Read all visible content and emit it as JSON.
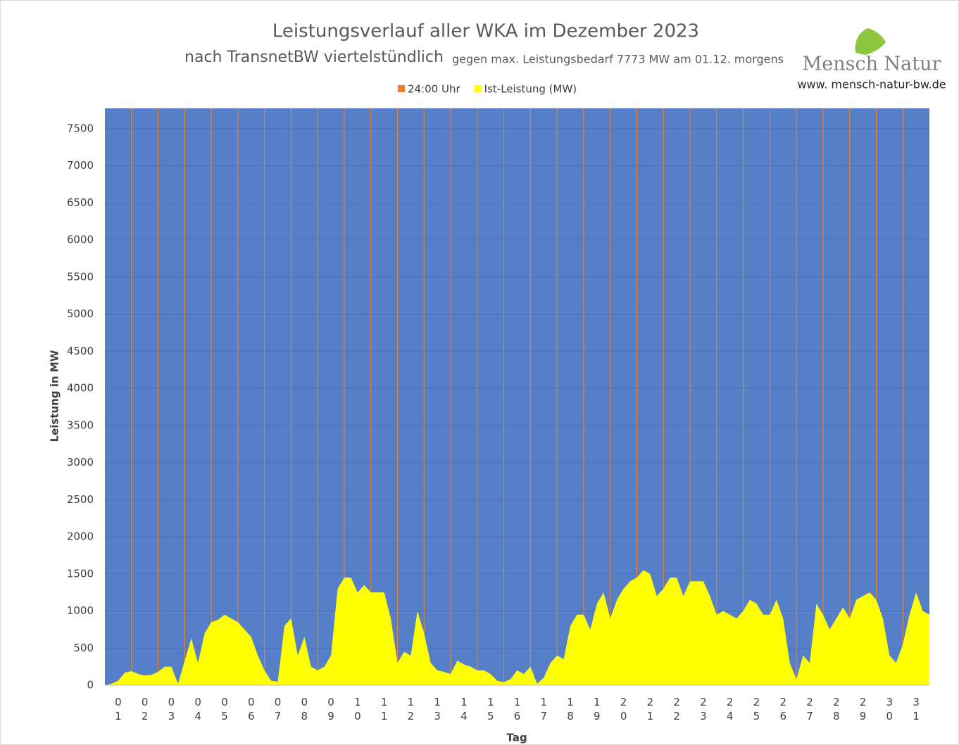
{
  "chart_data": {
    "type": "area",
    "title": "Leistungsverlauf aller WKA im Dezember 2023",
    "subtitle": "nach TransnetBW viertelstündlich",
    "subtitle_note": "gegen max. Leistungsbedarf 7773 MW am 01.12.  morgens",
    "logo": "Mensch Natur",
    "website": "www. mensch-natur-bw.de",
    "y_label": "Leistung in MW",
    "x_label": "Tag",
    "background": "#5580c8",
    "grid": true,
    "ylim": [
      0,
      7773
    ],
    "yticks": [
      0,
      500,
      1000,
      1500,
      2000,
      2500,
      3000,
      3500,
      4000,
      4500,
      5000,
      5500,
      6000,
      6500,
      7000,
      7500
    ],
    "xlim": [
      0,
      31
    ],
    "categories": [
      "01",
      "02",
      "03",
      "04",
      "05",
      "06",
      "07",
      "08",
      "09",
      "10",
      "11",
      "12",
      "13",
      "14",
      "15",
      "16",
      "17",
      "18",
      "19",
      "20",
      "21",
      "22",
      "23",
      "24",
      "25",
      "26",
      "27",
      "28",
      "29",
      "30",
      "31"
    ],
    "series": [
      {
        "name": "24:00 Uhr",
        "color": "#ed7d31",
        "kind": "vline",
        "x": [
          1,
          2,
          3,
          4,
          5,
          6,
          7,
          8,
          9,
          10,
          11,
          12,
          13,
          14,
          15,
          16,
          17,
          18,
          19,
          20,
          21,
          22,
          23,
          24,
          25,
          26,
          27,
          28,
          29,
          30
        ],
        "values": [
          7773,
          7773,
          7773,
          7773,
          7773,
          7773,
          7773,
          7773,
          7773,
          7773,
          7773,
          7773,
          7773,
          7773,
          7773,
          7773,
          7773,
          7773,
          7773,
          7773,
          7773,
          7773,
          7773,
          7773,
          7773,
          7773,
          7773,
          7773,
          7773,
          7773
        ]
      },
      {
        "name": "Ist-Leistung (MW)",
        "color": "#ffff00",
        "kind": "area",
        "x": [
          0,
          0.25,
          0.5,
          0.75,
          1,
          1.25,
          1.5,
          1.75,
          2,
          2.25,
          2.5,
          2.75,
          3,
          3.25,
          3.5,
          3.75,
          4,
          4.25,
          4.5,
          4.75,
          5,
          5.25,
          5.5,
          5.75,
          6,
          6.25,
          6.5,
          6.75,
          7,
          7.25,
          7.5,
          7.75,
          8,
          8.25,
          8.5,
          8.75,
          9,
          9.25,
          9.5,
          9.75,
          10,
          10.25,
          10.5,
          10.75,
          11,
          11.25,
          11.5,
          11.75,
          12,
          12.25,
          12.5,
          12.75,
          13,
          13.25,
          13.5,
          13.75,
          14,
          14.25,
          14.5,
          14.75,
          15,
          15.25,
          15.5,
          15.75,
          16,
          16.25,
          16.5,
          16.75,
          17,
          17.25,
          17.5,
          17.75,
          18,
          18.25,
          18.5,
          18.75,
          19,
          19.25,
          19.5,
          19.75,
          20,
          20.25,
          20.5,
          20.75,
          21,
          21.25,
          21.5,
          21.75,
          22,
          22.25,
          22.5,
          22.75,
          23,
          23.25,
          23.5,
          23.75,
          24,
          24.25,
          24.5,
          24.75,
          25,
          25.25,
          25.5,
          25.75,
          26,
          26.25,
          26.5,
          26.75,
          27,
          27.25,
          27.5,
          27.75,
          28,
          28.25,
          28.5,
          28.75,
          29,
          29.25,
          29.5,
          29.75,
          30,
          30.25,
          30.5,
          30.75,
          31
        ],
        "values": [
          0,
          20,
          60,
          170,
          190,
          150,
          130,
          140,
          180,
          250,
          250,
          20,
          330,
          630,
          300,
          700,
          850,
          880,
          950,
          900,
          850,
          750,
          650,
          400,
          200,
          60,
          50,
          800,
          900,
          400,
          650,
          250,
          200,
          250,
          400,
          1300,
          1450,
          1450,
          1250,
          1350,
          1250,
          1250,
          1250,
          900,
          300,
          450,
          400,
          1000,
          700,
          300,
          200,
          180,
          150,
          330,
          280,
          250,
          200,
          200,
          150,
          60,
          40,
          80,
          200,
          150,
          250,
          20,
          100,
          300,
          400,
          350,
          800,
          950,
          950,
          750,
          1100,
          1250,
          900,
          1150,
          1300,
          1400,
          1450,
          1550,
          1500,
          1200,
          1300,
          1450,
          1450,
          1200,
          1400,
          1400,
          1400,
          1200,
          950,
          1000,
          950,
          900,
          1000,
          1150,
          1100,
          950,
          950,
          1150,
          900,
          300,
          80,
          400,
          300,
          1100,
          950,
          750,
          900,
          1050,
          900,
          1150,
          1200,
          1250,
          1150,
          900,
          400,
          300,
          550,
          950,
          1250,
          1000,
          950
        ]
      }
    ]
  }
}
